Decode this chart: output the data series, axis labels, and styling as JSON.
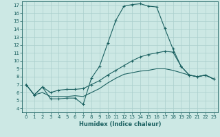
{
  "title": "",
  "xlabel": "Humidex (Indice chaleur)",
  "background_color": "#cce8e4",
  "grid_color": "#aacfcc",
  "line_color": "#1a6060",
  "xlim": [
    -0.5,
    23.5
  ],
  "ylim": [
    3.5,
    17.5
  ],
  "xticks": [
    0,
    1,
    2,
    3,
    4,
    5,
    6,
    7,
    8,
    9,
    10,
    11,
    12,
    13,
    14,
    15,
    16,
    17,
    18,
    19,
    20,
    21,
    22,
    23
  ],
  "yticks": [
    4,
    5,
    6,
    7,
    8,
    9,
    10,
    11,
    12,
    13,
    14,
    15,
    16,
    17
  ],
  "line1_x": [
    0,
    1,
    2,
    3,
    4,
    5,
    6,
    7,
    8,
    9,
    10,
    11,
    12,
    13,
    14,
    15,
    16,
    17,
    18,
    19,
    20,
    21,
    22,
    23
  ],
  "line1_y": [
    7.0,
    5.7,
    6.7,
    5.2,
    5.2,
    5.3,
    5.3,
    4.5,
    7.8,
    9.3,
    12.2,
    15.1,
    16.9,
    17.1,
    17.2,
    16.9,
    16.8,
    14.1,
    11.5,
    9.3,
    8.2,
    8.0,
    8.2,
    7.7
  ],
  "line2_x": [
    0,
    1,
    2,
    3,
    4,
    5,
    6,
    7,
    8,
    9,
    10,
    11,
    12,
    13,
    14,
    15,
    16,
    17,
    18,
    19,
    20,
    21,
    22,
    23
  ],
  "line2_y": [
    7.0,
    5.7,
    6.7,
    6.0,
    6.3,
    6.4,
    6.4,
    6.5,
    7.0,
    7.5,
    8.2,
    8.8,
    9.4,
    10.0,
    10.5,
    10.8,
    11.0,
    11.2,
    11.1,
    9.3,
    8.2,
    8.0,
    8.2,
    7.7
  ],
  "line3_x": [
    0,
    1,
    2,
    3,
    4,
    5,
    6,
    7,
    8,
    9,
    10,
    11,
    12,
    13,
    14,
    15,
    16,
    17,
    18,
    19,
    20,
    21,
    22,
    23
  ],
  "line3_y": [
    7.0,
    5.7,
    6.0,
    5.5,
    5.5,
    5.5,
    5.6,
    5.5,
    6.0,
    6.5,
    7.2,
    7.8,
    8.3,
    8.5,
    8.7,
    8.8,
    9.0,
    9.0,
    8.8,
    8.5,
    8.2,
    8.0,
    8.2,
    7.7
  ],
  "label_fontsize": 5.0,
  "xlabel_fontsize": 6.0
}
